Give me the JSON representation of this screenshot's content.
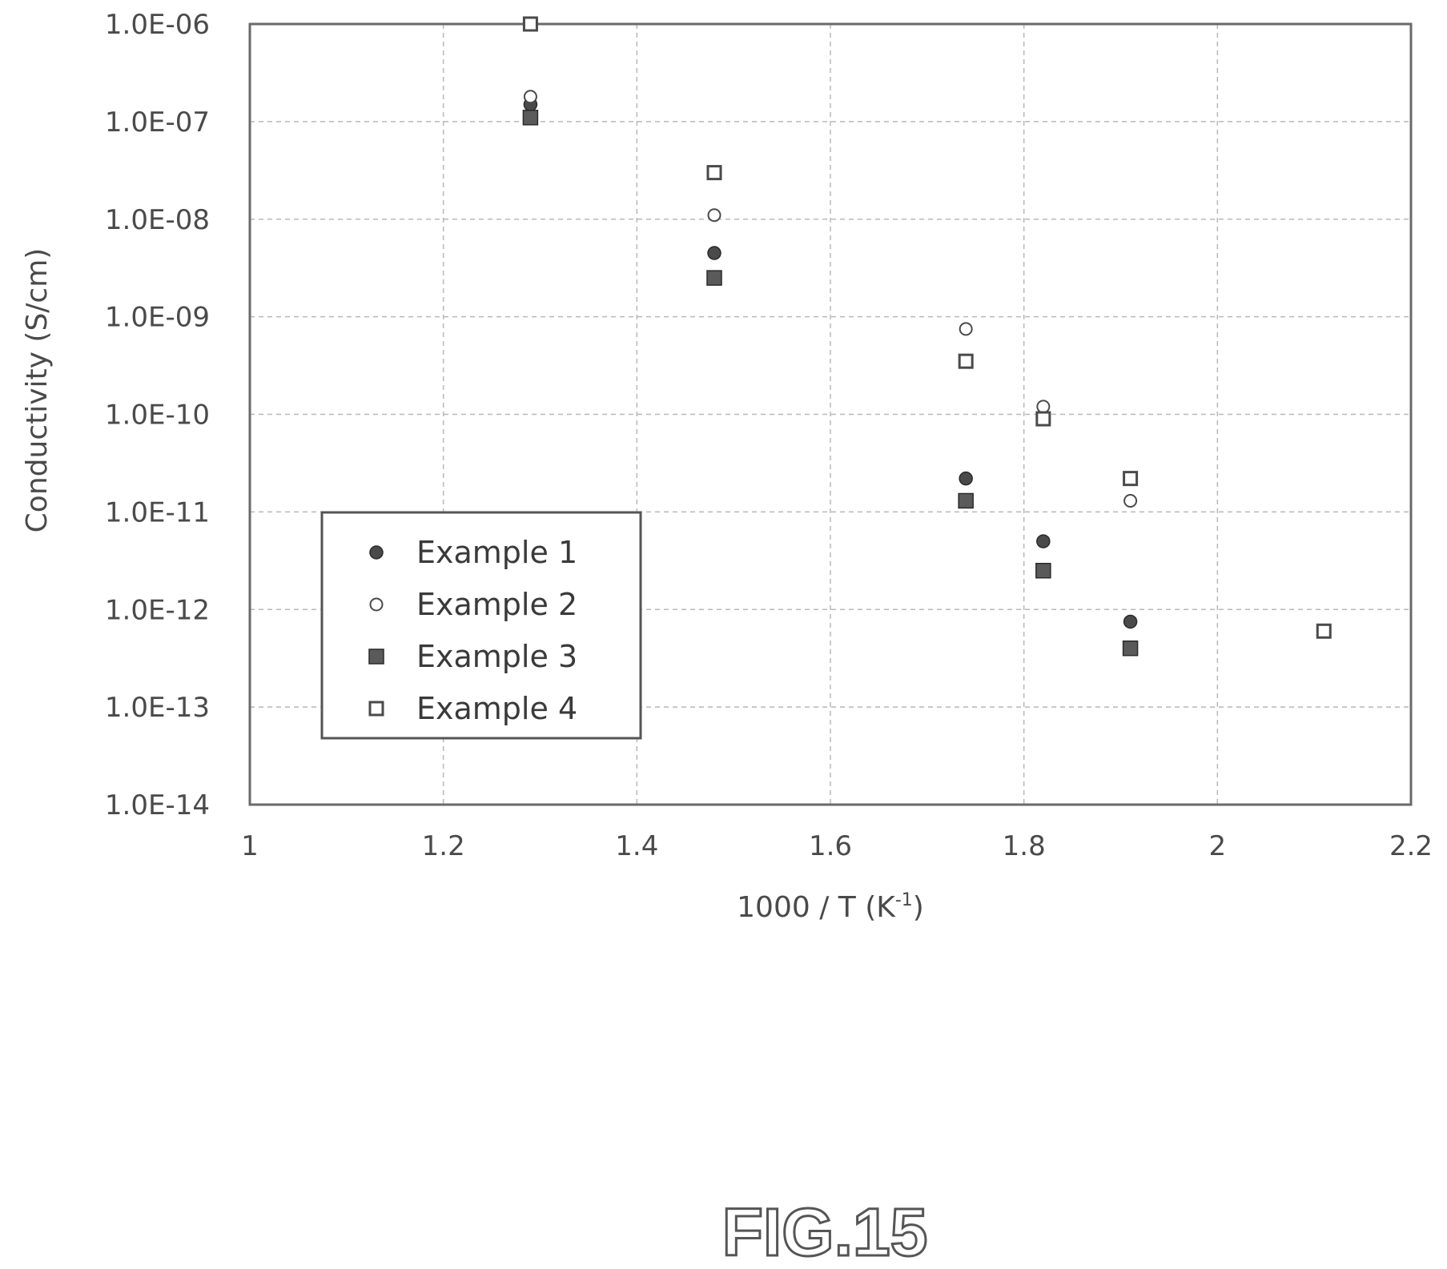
{
  "figure_label": "FIG.15",
  "chart_data": {
    "type": "scatter",
    "xlabel": "1000 / T (K",
    "xlabel_sup": "-1",
    "xlabel_suffix": ")",
    "ylabel": "Conductivity (S/cm)",
    "xlim": [
      1,
      2.2
    ],
    "ylim": [
      1e-14,
      1e-06
    ],
    "yscale": "log",
    "x_ticks": [
      "1",
      "1.2",
      "1.4",
      "1.6",
      "1.8",
      "2",
      "2.2"
    ],
    "y_ticks": [
      "1.0E-06",
      "1.0E-07",
      "1.0E-08",
      "1.0E-09",
      "1.0E-10",
      "1.0E-11",
      "1.0E-12",
      "1.0E-13",
      "1.0E-14"
    ],
    "grid": true,
    "legend_position": "lower-left",
    "series": [
      {
        "name": "Example 1",
        "marker": "filled-circle",
        "points": [
          [
            1.29,
            1.5e-07
          ],
          [
            1.48,
            4.5e-09
          ],
          [
            1.74,
            2.2e-11
          ],
          [
            1.82,
            5e-12
          ],
          [
            1.91,
            7.5e-13
          ]
        ]
      },
      {
        "name": "Example 2",
        "marker": "open-circle",
        "points": [
          [
            1.29,
            1.8e-07
          ],
          [
            1.48,
            1.1e-08
          ],
          [
            1.74,
            7.5e-10
          ],
          [
            1.82,
            1.2e-10
          ],
          [
            1.91,
            1.3e-11
          ]
        ]
      },
      {
        "name": "Example 3",
        "marker": "filled-square",
        "points": [
          [
            1.29,
            1.1e-07
          ],
          [
            1.48,
            2.5e-09
          ],
          [
            1.74,
            1.3e-11
          ],
          [
            1.82,
            2.5e-12
          ],
          [
            1.91,
            4e-13
          ]
        ]
      },
      {
        "name": "Example 4",
        "marker": "open-square",
        "points": [
          [
            1.29,
            1e-06
          ],
          [
            1.48,
            3e-08
          ],
          [
            1.74,
            3.5e-10
          ],
          [
            1.82,
            9e-11
          ],
          [
            1.91,
            2.2e-11
          ],
          [
            2.11,
            6e-13
          ]
        ]
      }
    ]
  }
}
